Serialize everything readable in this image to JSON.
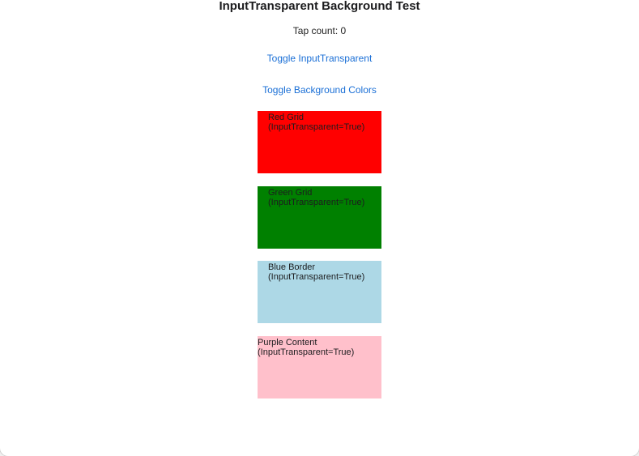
{
  "page": {
    "title": "InputTransparent Background Test",
    "tap_count": "Tap count: 0"
  },
  "buttons": {
    "toggle_input_transparent": "Toggle InputTransparent",
    "toggle_background_colors": "Toggle Background Colors"
  },
  "boxes": {
    "red": {
      "line1": "Red Grid",
      "line2": "(InputTransparent=True)",
      "color": "#ff0000"
    },
    "green": {
      "line1": "Green Grid",
      "line2": "(InputTransparent=True)",
      "color": "#008000"
    },
    "blue": {
      "line1": "Blue Border",
      "line2": "(InputTransparent=True)",
      "color": "#add8e6"
    },
    "pink": {
      "line1": "Purple Content",
      "line2": "(InputTransparent=True)",
      "color": "#ffc0cb"
    }
  },
  "colors": {
    "link": "#1a6fd6",
    "text": "#1c1c1e"
  }
}
